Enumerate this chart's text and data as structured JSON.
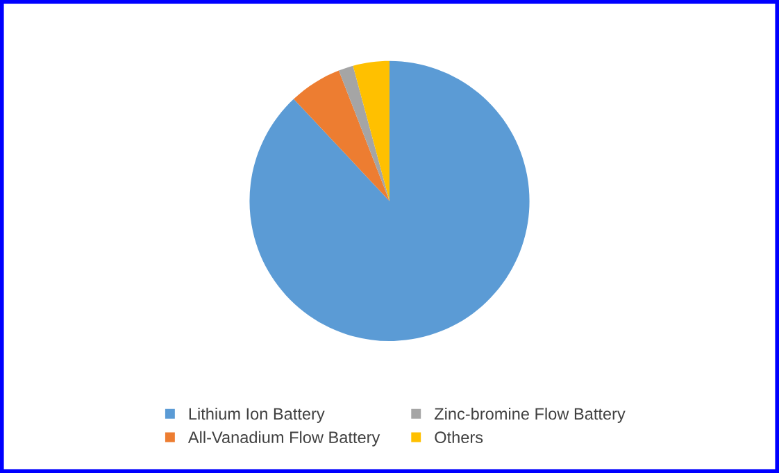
{
  "chart_data": {
    "type": "pie",
    "categories": [
      "Lithium Ion Battery",
      "All-Vanadium Flow Battery",
      "Zinc-bromine Flow Battery",
      "Others"
    ],
    "values": [
      88,
      6.1,
      1.7,
      4.2
    ],
    "colors": [
      "#5b9bd5",
      "#ed7d31",
      "#a5a5a5",
      "#ffc000"
    ],
    "legend": "bottom"
  }
}
